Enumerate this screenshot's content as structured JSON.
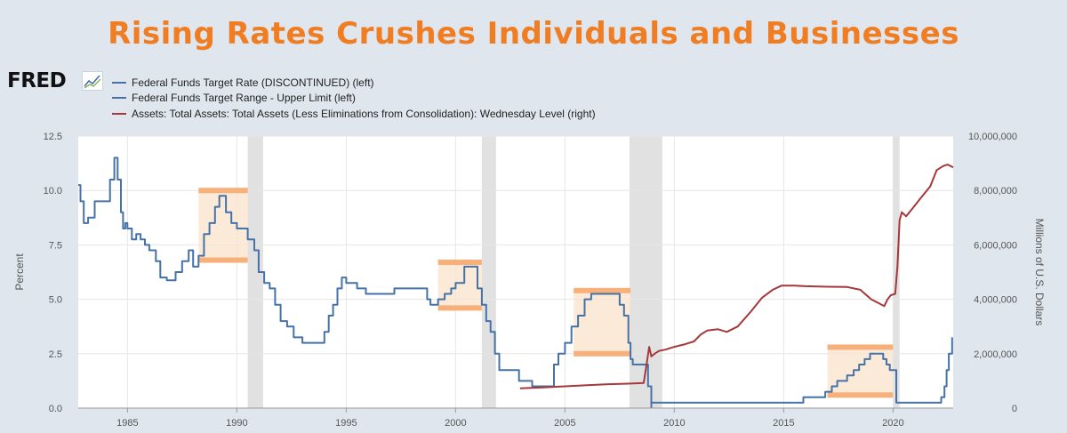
{
  "headline": "Rising Rates Crushes Individuals and Businesses",
  "logo_text": "FRED",
  "colors": {
    "headline": "#f07d22",
    "blue": "#4572a7",
    "red": "#a4383a",
    "recession": "#e1e1e1",
    "highlight": "#fbe3cc",
    "highlight_bar": "#f8b07a"
  },
  "legend": [
    {
      "label": "Federal Funds Target Rate (DISCONTINUED) (left)",
      "color": "#4572a7"
    },
    {
      "label": "Federal Funds Target Range - Upper Limit (left)",
      "color": "#4572a7"
    },
    {
      "label": "Assets: Total Assets: Total Assets (Less Eliminations from Consolidation): Wednesday Level (right)",
      "color": "#a4383a"
    }
  ],
  "chart_data": {
    "type": "line",
    "ylabel": "Percent",
    "ylabel_right": "Millions of U.S. Dollars",
    "xlim": [
      1982.75,
      2022.75
    ],
    "ylim": [
      0,
      12.5
    ],
    "ylim_right": [
      0,
      10000000
    ],
    "x_ticks": [
      1985,
      1990,
      1995,
      2000,
      2005,
      2010,
      2015,
      2020
    ],
    "y_ticks": [
      "0.0",
      "2.5",
      "5.0",
      "7.5",
      "10.0",
      "12.5"
    ],
    "y_ticks_right": [
      "0",
      "2,000,000",
      "4,000,000",
      "6,000,000",
      "8,000,000",
      "10,000,000"
    ],
    "grid": true,
    "legend_position": "top-left",
    "recessions": [
      [
        1990.5,
        1991.2
      ],
      [
        2001.2,
        2001.85
      ],
      [
        2007.95,
        2009.45
      ],
      [
        2020.0,
        2020.3
      ]
    ],
    "highlights": [
      {
        "x": [
          1988.25,
          1990.5
        ],
        "y": [
          6.8,
          10.0
        ]
      },
      {
        "x": [
          1999.2,
          2001.2
        ],
        "y": [
          4.6,
          6.7
        ]
      },
      {
        "x": [
          2005.4,
          2008.0
        ],
        "y": [
          2.5,
          5.4
        ]
      },
      {
        "x": [
          2017.0,
          2020.0
        ],
        "y": [
          0.6,
          2.8
        ]
      }
    ],
    "series": [
      {
        "name": "Federal Funds Target Rate (DISCONTINUED) (left)",
        "axis": "left",
        "step": true,
        "x": [
          1982.75,
          1982.85,
          1983.0,
          1983.2,
          1983.5,
          1983.75,
          1984.0,
          1984.2,
          1984.4,
          1984.55,
          1984.7,
          1984.8,
          1984.9,
          1985.0,
          1985.2,
          1985.4,
          1985.6,
          1985.8,
          1986.0,
          1986.3,
          1986.5,
          1986.8,
          1987.2,
          1987.5,
          1987.8,
          1988.0,
          1988.25,
          1988.5,
          1988.75,
          1989.0,
          1989.2,
          1989.5,
          1989.75,
          1990.0,
          1990.5,
          1990.8,
          1991.0,
          1991.25,
          1991.5,
          1991.75,
          1992.0,
          1992.3,
          1992.6,
          1993.0,
          1994.0,
          1994.2,
          1994.4,
          1994.6,
          1994.8,
          1995.0,
          1995.5,
          1995.9,
          1996.2,
          1997.2,
          1998.7,
          1998.85,
          1999.2,
          1999.5,
          1999.8,
          2000.0,
          2000.4,
          2000.8,
          2001.0,
          2001.2,
          2001.4,
          2001.6,
          2001.8,
          2002.0,
          2002.9,
          2003.5,
          2004.0,
          2004.5,
          2004.7,
          2005.0,
          2005.3,
          2005.6,
          2005.9,
          2006.2,
          2006.5,
          2007.5,
          2007.7,
          2007.9,
          2008.0,
          2008.1,
          2008.3,
          2008.8,
          2008.95
        ],
        "y": [
          10.25,
          9.5,
          8.5,
          8.75,
          9.5,
          9.5,
          9.5,
          10.5,
          11.5,
          10.5,
          9.0,
          8.25,
          8.5,
          8.25,
          7.75,
          8.0,
          7.75,
          7.5,
          7.25,
          6.75,
          6.0,
          5.875,
          6.25,
          6.75,
          7.25,
          6.5,
          7.0,
          8.0,
          8.5,
          9.25,
          9.75,
          9.0,
          8.5,
          8.25,
          7.75,
          7.25,
          6.25,
          5.75,
          5.5,
          4.75,
          4.0,
          3.75,
          3.25,
          3.0,
          3.5,
          4.25,
          4.75,
          5.5,
          6.0,
          5.75,
          5.5,
          5.25,
          5.25,
          5.5,
          5.0,
          4.75,
          5.0,
          5.25,
          5.5,
          5.75,
          6.5,
          6.5,
          5.5,
          4.75,
          4.0,
          3.5,
          2.5,
          1.75,
          1.25,
          1.0,
          1.0,
          2.0,
          2.5,
          3.0,
          3.75,
          4.25,
          5.0,
          5.25,
          5.25,
          4.75,
          4.25,
          3.0,
          2.25,
          2.0,
          2.0,
          1.0,
          0.0
        ]
      },
      {
        "name": "Federal Funds Target Range - Upper Limit (left)",
        "axis": "left",
        "step": true,
        "x": [
          2008.95,
          2015.9,
          2016.9,
          2017.2,
          2017.45,
          2017.9,
          2018.2,
          2018.45,
          2018.7,
          2018.95,
          2019.55,
          2019.7,
          2019.85,
          2020.15,
          2022.2,
          2022.35,
          2022.45,
          2022.55,
          2022.7
        ],
        "y": [
          0.25,
          0.5,
          0.75,
          1.0,
          1.25,
          1.5,
          1.75,
          2.0,
          2.25,
          2.5,
          2.25,
          2.0,
          1.75,
          0.25,
          0.5,
          1.0,
          1.75,
          2.5,
          3.25
        ]
      },
      {
        "name": "Assets: Total Assets: Total Assets (Less Eliminations from Consolidation): Wednesday Level (right)",
        "axis": "right",
        "step": false,
        "x": [
          2002.95,
          2004.0,
          2005.0,
          2006.0,
          2007.0,
          2007.9,
          2008.6,
          2008.75,
          2008.85,
          2008.95,
          2009.1,
          2009.3,
          2009.6,
          2010.0,
          2010.5,
          2010.9,
          2011.2,
          2011.5,
          2012.0,
          2012.4,
          2012.9,
          2013.5,
          2014.0,
          2014.5,
          2014.9,
          2015.5,
          2016.0,
          2017.0,
          2017.9,
          2018.5,
          2019.0,
          2019.6,
          2019.75,
          2019.9,
          2020.1,
          2020.2,
          2020.3,
          2020.4,
          2020.6,
          2020.9,
          2021.3,
          2021.7,
          2022.0,
          2022.3,
          2022.5,
          2022.75
        ],
        "y": [
          730000,
          760000,
          800000,
          840000,
          880000,
          900000,
          920000,
          1700000,
          2250000,
          1900000,
          2000000,
          2100000,
          2150000,
          2250000,
          2350000,
          2450000,
          2700000,
          2850000,
          2900000,
          2800000,
          3000000,
          3550000,
          4050000,
          4350000,
          4500000,
          4500000,
          4480000,
          4460000,
          4450000,
          4350000,
          4000000,
          3750000,
          4000000,
          4150000,
          4200000,
          5200000,
          6900000,
          7200000,
          7050000,
          7350000,
          7750000,
          8150000,
          8750000,
          8900000,
          8950000,
          8850000
        ]
      }
    ]
  }
}
